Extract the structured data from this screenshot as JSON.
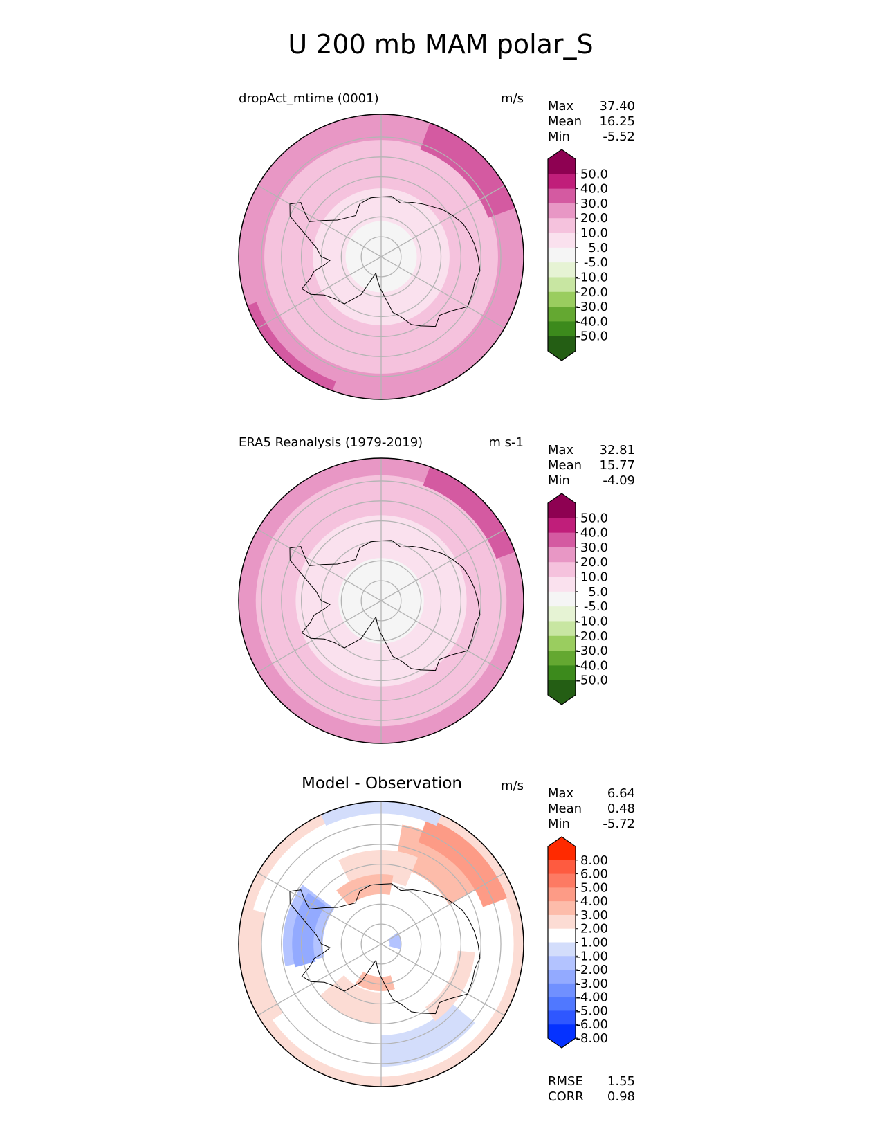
{
  "title": "U 200 mb MAM polar_S",
  "colors": {
    "seq_levels": [
      "#245e14",
      "#3c8a1c",
      "#64a831",
      "#9acd5f",
      "#c8e6a2",
      "#e6f3d4",
      "#f5f5f5",
      "#fae1ee",
      "#f5c2dd",
      "#e897c5",
      "#d45aa1",
      "#c01e7a",
      "#8e0152"
    ],
    "diff_levels": [
      "#0532ff",
      "#2f57ff",
      "#5078ff",
      "#7090ff",
      "#93aaff",
      "#b3c3ff",
      "#d3ddfb",
      "#ffffff",
      "#fcdcd4",
      "#fdbcaa",
      "#fd9b86",
      "#fd7a63",
      "#fe5b40",
      "#ff2a00"
    ],
    "grid": "#b4b4b4",
    "coast": "#000000"
  },
  "chart_data": [
    {
      "type": "heatmap",
      "projection": "south-polar-stereographic",
      "panel_title": "dropAct_mtime (0001)",
      "units": "m/s",
      "stats": [
        {
          "label": "Max",
          "value": "37.40"
        },
        {
          "label": "Mean",
          "value": "16.25"
        },
        {
          "label": "Min",
          "value": "-5.52"
        }
      ],
      "colorbar": {
        "tick_labels": [
          "50.0",
          "40.0",
          "30.0",
          "20.0",
          "10.0",
          "5.0",
          "-5.0",
          "-10.0",
          "-20.0",
          "-30.0",
          "-40.0",
          "-50.0"
        ],
        "extend": "both"
      },
      "field": {
        "base_level": 8,
        "rings": [
          {
            "r": 1.0,
            "level": 9
          },
          {
            "r": 0.82,
            "level": 8
          },
          {
            "r": 0.48,
            "level": 7
          },
          {
            "r": 0.25,
            "level": 6
          }
        ],
        "features": [
          {
            "angle": 45,
            "r": 0.96,
            "width": 0.32,
            "level": 10
          },
          {
            "angle": 225,
            "r": 0.99,
            "width": 0.12,
            "level": 10
          }
        ]
      },
      "extra_stats": []
    },
    {
      "type": "heatmap",
      "projection": "south-polar-stereographic",
      "panel_title": "ERA5 Reanalysis (1979-2019)",
      "units": "m s-1",
      "stats": [
        {
          "label": "Max",
          "value": "32.81"
        },
        {
          "label": "Mean",
          "value": "15.77"
        },
        {
          "label": "Min",
          "value": "-4.09"
        }
      ],
      "colorbar": {
        "tick_labels": [
          "50.0",
          "40.0",
          "30.0",
          "20.0",
          "10.0",
          "5.0",
          "-5.0",
          "-10.0",
          "-20.0",
          "-30.0",
          "-40.0",
          "-50.0"
        ],
        "extend": "both"
      },
      "field": {
        "base_level": 8,
        "rings": [
          {
            "r": 1.0,
            "level": 9
          },
          {
            "r": 0.88,
            "level": 8
          },
          {
            "r": 0.6,
            "level": 7
          },
          {
            "r": 0.3,
            "level": 6
          }
        ],
        "features": [
          {
            "angle": 45,
            "r": 0.97,
            "width": 0.22,
            "level": 10
          }
        ]
      },
      "extra_stats": []
    },
    {
      "type": "heatmap",
      "projection": "south-polar-stereographic",
      "panel_title": "Model - Observation",
      "units": "m/s",
      "stats": [
        {
          "label": "Max",
          "value": "6.64"
        },
        {
          "label": "Mean",
          "value": "0.48"
        },
        {
          "label": "Min",
          "value": "-5.72"
        }
      ],
      "colorbar": {
        "tick_labels": [
          "8.00",
          "6.00",
          "5.00",
          "4.00",
          "3.00",
          "2.00",
          "1.00",
          "-1.00",
          "-2.00",
          "-3.00",
          "-4.00",
          "-5.00",
          "-6.00",
          "-8.00"
        ],
        "extend": "both"
      },
      "field": {
        "base_level": 7,
        "rings": [
          {
            "r": 1.0,
            "level": 8
          },
          {
            "r": 0.93,
            "level": 7
          }
        ],
        "features": [
          {
            "angle": 55,
            "r": 0.7,
            "width": 0.3,
            "level": 9
          },
          {
            "angle": 45,
            "r": 0.85,
            "width": 0.18,
            "level": 10
          },
          {
            "angle": 92,
            "r": 0.55,
            "width": 0.22,
            "level": 8
          },
          {
            "angle": 105,
            "r": 0.42,
            "width": 0.14,
            "level": 9
          },
          {
            "angle": 168,
            "r": 0.55,
            "width": 0.28,
            "level": 5
          },
          {
            "angle": 170,
            "r": 0.55,
            "width": 0.15,
            "level": 4
          },
          {
            "angle": 190,
            "r": 0.9,
            "width": 0.12,
            "level": 8
          },
          {
            "angle": 245,
            "r": 0.45,
            "width": 0.22,
            "level": 8
          },
          {
            "angle": 262,
            "r": 0.28,
            "width": 0.1,
            "level": 9
          },
          {
            "angle": 295,
            "r": 0.75,
            "width": 0.22,
            "level": 6
          },
          {
            "angle": 330,
            "r": 0.6,
            "width": 0.12,
            "level": 8
          },
          {
            "angle": 10,
            "r": 0.1,
            "width": 0.08,
            "level": 5
          },
          {
            "angle": 90,
            "r": 0.96,
            "width": 0.09,
            "level": 6
          }
        ]
      },
      "extra_stats": [
        {
          "label": "RMSE",
          "value": "1.55"
        },
        {
          "label": "CORR",
          "value": "0.98"
        }
      ]
    }
  ]
}
